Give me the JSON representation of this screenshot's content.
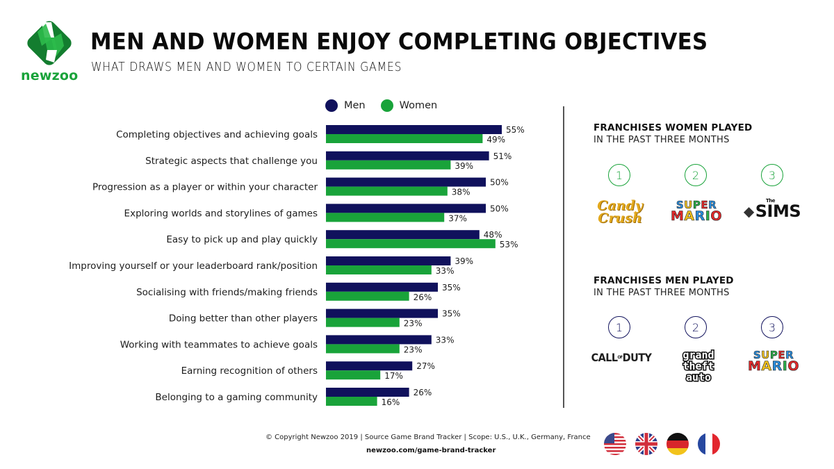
{
  "brand": {
    "name": "newzoo",
    "colors": {
      "green": "#19a33a",
      "dark_green": "#0e7a2c",
      "navy": "#10115c"
    }
  },
  "header": {
    "title": "MEN AND WOMEN ENJOY COMPLETING OBJECTIVES",
    "subtitle": "WHAT DRAWS MEN AND WOMEN TO CERTAIN GAMES"
  },
  "legend": {
    "items": [
      {
        "label": "Men",
        "color": "#10115c"
      },
      {
        "label": "Women",
        "color": "#19a33a"
      }
    ]
  },
  "chart_data": {
    "type": "bar",
    "orientation": "horizontal",
    "title": "MEN AND WOMEN ENJOY COMPLETING OBJECTIVES",
    "subtitle": "WHAT DRAWS MEN AND WOMEN TO CERTAIN GAMES",
    "xlabel": "",
    "ylabel": "",
    "unit": "%",
    "xlim": [
      0,
      60
    ],
    "grid": false,
    "legend_position": "top",
    "categories": [
      "Completing objectives and achieving goals",
      "Strategic aspects that challenge you",
      "Progression as a player or within your character",
      "Exploring worlds and storylines of games",
      "Easy to pick up and play quickly",
      "Improving yourself or your leaderboard rank/position",
      "Socialising with friends/making friends",
      "Doing better than other players",
      "Working with teammates to achieve goals",
      "Earning recognition of others",
      "Belonging to a gaming community"
    ],
    "series": [
      {
        "name": "Men",
        "color": "#10115c",
        "values": [
          55,
          51,
          50,
          50,
          48,
          39,
          35,
          35,
          33,
          27,
          26
        ]
      },
      {
        "name": "Women",
        "color": "#19a33a",
        "values": [
          49,
          39,
          38,
          37,
          53,
          33,
          26,
          23,
          23,
          17,
          16
        ]
      }
    ]
  },
  "franchises": {
    "women": {
      "title": "FRANCHISES WOMEN PLAYED",
      "subtitle": "IN THE PAST THREE MONTHS",
      "ranks": [
        {
          "rank": "1",
          "name": "Candy Crush",
          "logo_lines": [
            "Candy",
            "Crush"
          ]
        },
        {
          "rank": "2",
          "name": "Super Mario",
          "logo_lines": [
            "SUPER",
            "MARIO"
          ]
        },
        {
          "rank": "3",
          "name": "The Sims",
          "logo_lines": [
            "The",
            "SIMS"
          ]
        }
      ]
    },
    "men": {
      "title": "FRANCHISES MEN PLAYED",
      "subtitle": "IN THE PAST THREE MONTHS",
      "ranks": [
        {
          "rank": "1",
          "name": "Call of Duty",
          "logo_lines": [
            "CALL",
            "OF",
            "DUTY"
          ]
        },
        {
          "rank": "2",
          "name": "Grand Theft Auto",
          "logo_lines": [
            "grand",
            "theft",
            "auto"
          ]
        },
        {
          "rank": "3",
          "name": "Super Mario",
          "logo_lines": [
            "SUPER",
            "MARIO"
          ]
        }
      ]
    }
  },
  "footer": {
    "copyright": "© Copyright Newzoo 2019 | Source Game Brand Tracker | Scope: U.S., U.K., Germany, France",
    "url": "newzoo.com/game-brand-tracker",
    "flags": [
      "us-flag",
      "uk-flag",
      "germany-flag",
      "france-flag"
    ]
  }
}
